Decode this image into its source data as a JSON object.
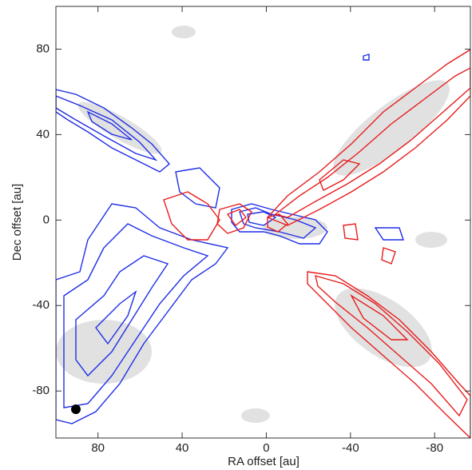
{
  "chart_data": {
    "type": "image",
    "xlabel": "RA offset [au]",
    "ylabel": "Dec offset [au]",
    "xlim": [
      100,
      -97
    ],
    "ylim": [
      -102,
      100
    ],
    "xticks": [
      80,
      40,
      0,
      -40,
      -80
    ],
    "yticks": [
      80,
      40,
      0,
      -40,
      -80
    ]
  }
}
